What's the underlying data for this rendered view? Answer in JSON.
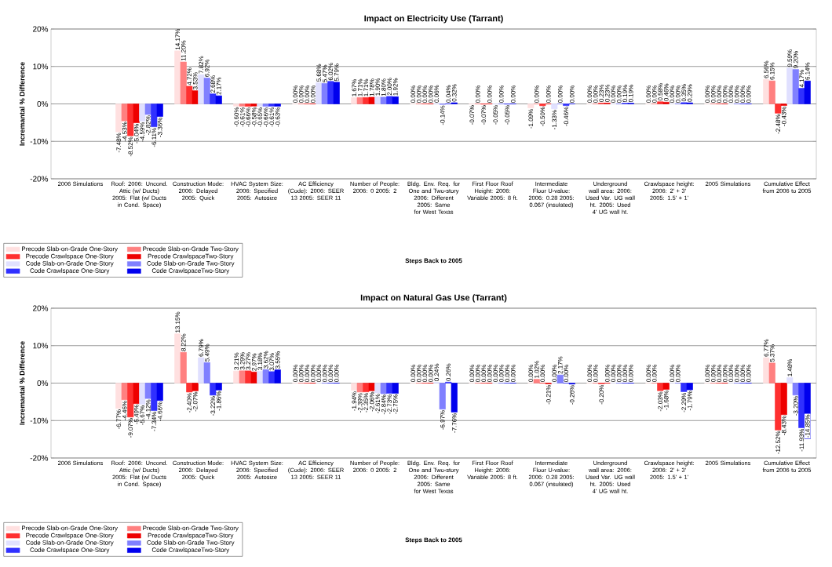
{
  "chart_data": [
    {
      "type": "bar",
      "title": "Impact on Electricity Use (Tarrant)",
      "xlabel": "Steps Back to 2005",
      "ylabel": "Incremantal % Difference",
      "categories": [
        "2006 Simulations",
        "Roof: 2006: Uncond. Attic (w/ Ducts) 2005: Flat (w/ Ducts in Cond. Space)",
        "Construction Mode: 2006: Delayed 2005: Quick",
        "HVAC System Size: 2006: Specified 2005: Autosize",
        "AC Efficiency (Code): 2006: SEER 13 2005: SEER 11",
        "Number of People: 2006: 0 2005: 2",
        "Bldg. Env. Req. for One and Two-story 2006: Different 2005: Same for West Texas",
        "First Floor Roof Height: 2006: Variable 2005: 8 ft.",
        "Intermediate Floor U-value: 2006: 0.28 2005: 0.067 (insulated)",
        "Underground wall area: 2006: Used Var. UG wall ht. 2005: Used 4' UG wall ht.",
        "Crawlspace height: 2006: 2' + 3' 2005: 1.5' + 1'",
        "2005 Simulations",
        "Cumulative Effect from 2006 to 2005"
      ],
      "series": [
        {
          "name": "Precode Slab-on-Grade One-Story",
          "color": "#ffe0e0",
          "values": [
            null,
            -7.48,
            14.17,
            -0.6,
            0.0,
            1.67,
            0.0,
            -0.07,
            -1.09,
            0.0,
            0.0,
            0.0,
            6.56
          ],
          "value_labels": [
            null,
            "-7.48%",
            "14.17%",
            "-0.60%",
            "0.00%",
            "1.67%",
            "0.00%",
            "-0.07%",
            "-1.09%",
            "0.00%",
            "0.00%",
            "0.00%",
            "6.56%"
          ]
        },
        {
          "name": "Precode Slab-on-Grade Two-Story",
          "color": "#ff8080",
          "values": [
            null,
            -4.53,
            11.2,
            -0.61,
            0.0,
            1.71,
            0.0,
            0.0,
            0.0,
            0.0,
            0.0,
            0.0,
            6.15
          ],
          "value_labels": [
            null,
            "-4.53%",
            "11.20%",
            "-0.61%",
            "0.00%",
            "1.71%",
            "0.00%",
            "0.00%",
            "0.00%",
            "0.00%",
            "0.00%",
            "0.00%",
            "6.15%"
          ]
        },
        {
          "name": "Precode Crawlspace One-Story",
          "color": "#ff3030",
          "values": [
            null,
            -8.52,
            4.72,
            -0.66,
            0.0,
            1.71,
            0.0,
            -0.07,
            -0.5,
            0.23,
            0.58,
            0.0,
            -2.48
          ],
          "value_labels": [
            null,
            "-8.52%",
            "4.72%",
            "-0.66%",
            "0.00%",
            "1.71%",
            "0.00%",
            "-0.07%",
            "-0.50%",
            "0.23%",
            "0.58%",
            "0.00%",
            "-2.48%"
          ]
        },
        {
          "name": "Precode CrawlspaceTwo-Story",
          "color": "#ee0000",
          "values": [
            null,
            -5.04,
            3.53,
            -0.58,
            0.0,
            1.78,
            0.0,
            0.0,
            0.0,
            0.23,
            0.46,
            0.0,
            -0.43
          ],
          "value_labels": [
            null,
            "-5.04%",
            "3.53%",
            "-0.58%",
            "0.00%",
            "1.78%",
            "0.00%",
            "0.00%",
            "0.00%",
            "0.23%",
            "0.46%",
            "0.00%",
            "-0.43%"
          ]
        },
        {
          "name": "Code Slab-on-Grade One-Story",
          "color": "#e0e0ff",
          "values": [
            null,
            -4.59,
            7.82,
            -0.65,
            5.68,
            1.9,
            0.06,
            -0.05,
            -1.33,
            0.0,
            0.0,
            0.0,
            9.59
          ],
          "value_labels": [
            null,
            "-4.59%",
            "7.82%",
            "-0.65%",
            "5.68%",
            "1.90%",
            "0.06%",
            "-0.05%",
            "-1.33%",
            "0.00%",
            "0.00%",
            "0.00%",
            "9.59%"
          ]
        },
        {
          "name": "Code Slab-on-Grade Two-Story",
          "color": "#8080ff",
          "values": [
            null,
            -2.82,
            6.92,
            -0.66,
            5.47,
            1.8,
            -0.14,
            0.0,
            0.0,
            0.0,
            0.0,
            0.0,
            9.2
          ],
          "value_labels": [
            null,
            "-2.82%",
            "6.92%",
            "-0.66%",
            "5.47%",
            "1.80%",
            "-0.14%",
            "0.00%",
            "0.00%",
            "0.00%",
            "0.00%",
            "0.00%",
            "9.20%"
          ]
        },
        {
          "name": "Code Crawlspace One-Story",
          "color": "#3030ff",
          "values": [
            null,
            -6.11,
            2.68,
            -0.61,
            6.02,
            2.0,
            0.04,
            -0.05,
            -0.46,
            0.19,
            0.35,
            0.0,
            4.17
          ],
          "value_labels": [
            null,
            "-6.11%",
            "2.68%",
            "-0.61%",
            "6.02%",
            "2.00%",
            "0.04%",
            "-0.05%",
            "-0.46%",
            "0.19%",
            "0.35%",
            "0.00%",
            "4.17%"
          ]
        },
        {
          "name": "Code CrawlspaceTwo-Story",
          "color": "#0000ee",
          "values": [
            null,
            -3.36,
            2.17,
            -0.63,
            5.79,
            1.92,
            0.32,
            0.0,
            0.0,
            0.19,
            0.29,
            0.0,
            6.14
          ],
          "value_labels": [
            null,
            "-3.36%",
            "2.17%",
            "-0.63%",
            "5.79%",
            "1.92%",
            "0.32%",
            "0.00%",
            "0.00%",
            "0.19%",
            "0.29%",
            "0.00%",
            "6.14%"
          ]
        }
      ],
      "ylim": [
        -20,
        20
      ],
      "yticks": [
        {
          "value": -20,
          "label": "-20%"
        },
        {
          "value": -10,
          "label": "-10%"
        },
        {
          "value": 0,
          "label": "0%"
        },
        {
          "value": 10,
          "label": "10%"
        },
        {
          "value": 20,
          "label": "20%"
        }
      ],
      "grid": "y",
      "legend": "bottom left"
    },
    {
      "type": "bar",
      "title": "Impact on Natural Gas Use (Tarrant)",
      "xlabel": "Steps Back to 2005",
      "ylabel": "Incremantal % Difference",
      "categories": [
        "2006 Simulations",
        "Roof: 2006: Uncond. Attic (w/ Ducts) 2005: Flat (w/ Ducts in Cond. Space)",
        "Construction Mode: 2006: Delayed 2005: Quick",
        "HVAC System Size: 2006: Specified 2005: Autosize",
        "AC Efficiency (Code): 2006: SEER 13 2005: SEER 11",
        "Number of People: 2006: 0 2005: 2",
        "Bldg. Env. Req. for One and Two-story 2006: Different 2005: Same for West Texas",
        "First Floor Roof Height: 2006: Variable 2005: 8 ft.",
        "Intermediate Floor U-value: 2006: 0.28 2005: 0.067 (insulated)",
        "Underground wall area: 2006: Used Var. UG wall ht. 2005: Used 4' UG wall ht.",
        "Crawlspace height: 2006: 2' + 3' 2005: 1.5' + 1'",
        "2005 Simulations",
        "Cumulative Effect from 2006 to 2005"
      ],
      "series": [
        {
          "name": "Precode Slab-on-Grade One-Story",
          "color": "#ffe0e0",
          "values": [
            null,
            -6.77,
            13.15,
            3.21,
            0.0,
            -1.94,
            0.0,
            0.0,
            0.0,
            0.0,
            0.0,
            0.0,
            6.77
          ],
          "value_labels": [
            null,
            "-6.77%",
            "13.15%",
            "3.21%",
            "0.00%",
            "-1.94%",
            "0.00%",
            "0.00%",
            "0.00%",
            "0.00%",
            "0.00%",
            "0.00%",
            "6.77%"
          ]
        },
        {
          "name": "Precode Slab-on-Grade Two-Story",
          "color": "#ff8080",
          "values": [
            null,
            -4.46,
            8.22,
            3.29,
            0.0,
            -2.39,
            0.0,
            0.0,
            1.02,
            0.0,
            0.0,
            0.0,
            5.37
          ],
          "value_labels": [
            null,
            "-4.46%",
            "8.22%",
            "3.29%",
            "0.00%",
            "-2.39%",
            "0.00%",
            "0.00%",
            "1.02%",
            "0.00%",
            "0.00%",
            "0.00%",
            "5.37%"
          ]
        },
        {
          "name": "Precode Crawlspace One-Story",
          "color": "#ff3030",
          "values": [
            null,
            -9.07,
            -2.4,
            3.27,
            0.0,
            -2.35,
            0.0,
            0.0,
            0.0,
            -0.2,
            -2.03,
            0.0,
            -12.52
          ],
          "value_labels": [
            null,
            "-9.07%",
            "-2.40%",
            "3.27%",
            "0.00%",
            "-2.35%",
            "0.00%",
            "0.00%",
            "0.00%",
            "-0.20%",
            "-2.03%",
            "0.00%",
            "-12.52%"
          ]
        },
        {
          "name": "Precode CrawlspaceTwo-Story",
          "color": "#ee0000",
          "values": [
            null,
            -5.49,
            -2.07,
            2.97,
            0.0,
            -2.06,
            0.0,
            0.0,
            -0.21,
            0.0,
            -1.68,
            0.0,
            -8.43
          ],
          "value_labels": [
            null,
            "-5.49%",
            "-2.07%",
            "2.97%",
            "0.00%",
            "-2.06%",
            "0.00%",
            "0.00%",
            "-0.21%",
            "0.00%",
            "-1.68%",
            "0.00%",
            "-8.43%"
          ]
        },
        {
          "name": "Code Slab-on-Grade One-Story",
          "color": "#e0e0ff",
          "values": [
            null,
            -5.67,
            6.79,
            3.18,
            0.0,
            -2.61,
            0.24,
            0.0,
            0.0,
            0.0,
            0.0,
            0.0,
            1.48
          ],
          "value_labels": [
            null,
            "-5.67%",
            "6.79%",
            "3.18%",
            "0.00%",
            "-2.61%",
            "0.24%",
            "0.00%",
            "0.00%",
            "0.00%",
            "0.00%",
            "0.00%",
            "1.48%"
          ]
        },
        {
          "name": "Code Slab-on-Grade Two-Story",
          "color": "#8080ff",
          "values": [
            null,
            -4.12,
            5.49,
            3.62,
            0.0,
            -2.84,
            -6.97,
            0.0,
            2.17,
            0.0,
            0.0,
            0.0,
            -3.2
          ],
          "value_labels": [
            null,
            "-4.12%",
            "5.49%",
            "3.62%",
            "0.00%",
            "-2.84%",
            "-6.97%",
            "0.00%",
            "2.17%",
            "0.00%",
            "0.00%",
            "0.00%",
            "-3.20%"
          ]
        },
        {
          "name": "Code Crawlspace One-Story",
          "color": "#3030ff",
          "values": [
            null,
            -7.34,
            -3.22,
            3.07,
            0.0,
            -2.73,
            0.26,
            0.0,
            0.0,
            0.0,
            -2.29,
            0.0,
            -11.93
          ],
          "value_labels": [
            null,
            "-7.34%",
            "-3.22%",
            "3.07%",
            "0.00%",
            "-2.73%",
            "0.26%",
            "0.00%",
            "0.00%",
            "0.00%",
            "-2.29%",
            "0.00%",
            "-11.93%"
          ]
        },
        {
          "name": "Code CrawlspaceTwo-Story",
          "color": "#0000ee",
          "values": [
            null,
            -4.66,
            -1.86,
            3.55,
            0.0,
            -2.75,
            -7.76,
            0.0,
            -0.26,
            0.0,
            -1.79,
            0.0,
            -14.85
          ],
          "value_labels": [
            null,
            "-4.66%",
            "-1.86%",
            "3.55%",
            "0.00%",
            "-2.75%",
            "-7.76%",
            "0.00%",
            "-0.26%",
            "0.00%",
            "-1.79%",
            "0.00%",
            "-14.85%"
          ]
        }
      ],
      "ylim": [
        -20,
        20
      ],
      "yticks": [
        {
          "value": -20,
          "label": "-20%"
        },
        {
          "value": -10,
          "label": "-10%"
        },
        {
          "value": 0,
          "label": "0%"
        },
        {
          "value": 10,
          "label": "10%"
        },
        {
          "value": 20,
          "label": "20%"
        }
      ],
      "grid": "y",
      "legend": "bottom left"
    }
  ]
}
